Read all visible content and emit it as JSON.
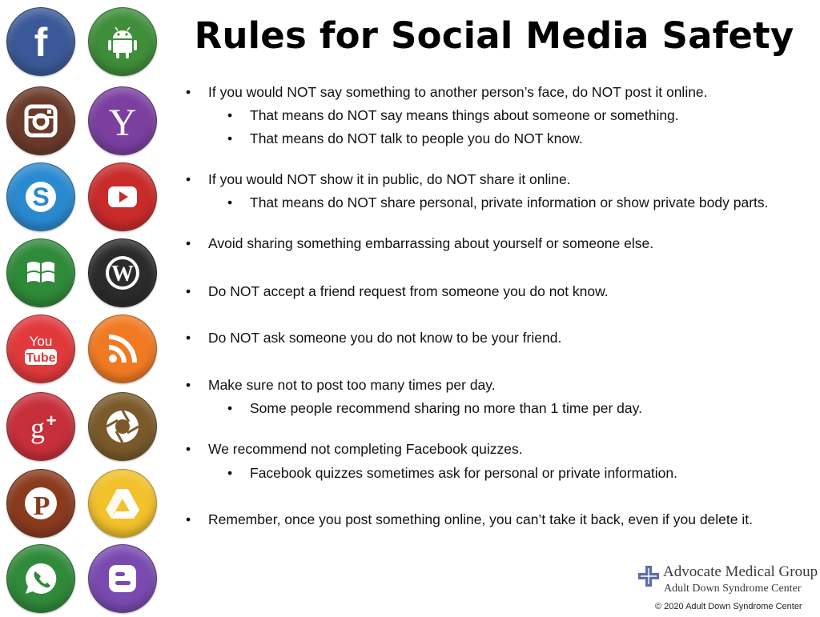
{
  "title": "Rules for Social Media Safety",
  "icons": [
    {
      "name": "facebook-icon",
      "color": "#3b5998",
      "glyph": "f"
    },
    {
      "name": "android-icon",
      "color": "#3e8e3a",
      "glyph": ""
    },
    {
      "name": "instagram-icon",
      "color": "#6b3a2a",
      "glyph": ""
    },
    {
      "name": "yahoo-icon",
      "color": "#7b3fa0",
      "glyph": "Y"
    },
    {
      "name": "skype-icon",
      "color": "#2a8ad0",
      "glyph": "S"
    },
    {
      "name": "youtube-icon",
      "color": "#c92b2b",
      "glyph": ""
    },
    {
      "name": "windows-icon",
      "color": "#2f8a3a",
      "glyph": ""
    },
    {
      "name": "wordpress-icon",
      "color": "#2b2b2b",
      "glyph": "W"
    },
    {
      "name": "youtube-text-icon",
      "color": "#e0393c",
      "glyph_top": "You",
      "glyph_bottom": "Tube"
    },
    {
      "name": "rss-icon",
      "color": "#f07a22",
      "glyph": ""
    },
    {
      "name": "google-plus-icon",
      "color": "#c72f3b",
      "glyph": "g+"
    },
    {
      "name": "picasa-icon",
      "color": "#7a5a2a",
      "glyph": ""
    },
    {
      "name": "pinterest-icon",
      "color": "#8a3b1e",
      "glyph": "P"
    },
    {
      "name": "google-drive-icon",
      "color": "#f2c12b",
      "glyph": ""
    },
    {
      "name": "whatsapp-icon",
      "color": "#2f8a3a",
      "glyph": ""
    },
    {
      "name": "blogger-icon",
      "color": "#7a4ab0",
      "glyph": "B"
    }
  ],
  "rules": [
    {
      "level": 1,
      "text": "If you would NOT say something to another person’s face, do NOT post it online."
    },
    {
      "level": 2,
      "text": "That means do NOT say means things about someone or something."
    },
    {
      "level": 2,
      "text": "That means do NOT talk to people you do NOT know."
    },
    {
      "level": 1,
      "text": "If you would NOT show it in public, do NOT share it online."
    },
    {
      "level": 2,
      "text": "That means do NOT share personal, private information or show private body parts."
    },
    {
      "level": 1,
      "text": "Avoid sharing something embarrassing about yourself or someone else."
    },
    {
      "level": 1,
      "text": "Do NOT accept a friend request from someone you do not know."
    },
    {
      "level": 1,
      "text": "Do NOT ask someone you do not know to be your friend."
    },
    {
      "level": 1,
      "text": "Make sure not to post too many times per day."
    },
    {
      "level": 2,
      "text": "Some people recommend sharing no more than 1 time per day."
    },
    {
      "level": 1,
      "text": "We recommend not completing Facebook quizzes."
    },
    {
      "level": 2,
      "text": "Facebook quizzes sometimes ask for personal or private information."
    },
    {
      "level": 1,
      "text": "Remember, once you post something online, you can’t take it back, even if you delete it."
    }
  ],
  "bullet": "•",
  "logo": {
    "org": "Advocate Medical Group",
    "center": "Adult Down Syndrome Center",
    "color": "#5b6fa8"
  },
  "copyright": "© 2020 Adult Down Syndrome Center"
}
